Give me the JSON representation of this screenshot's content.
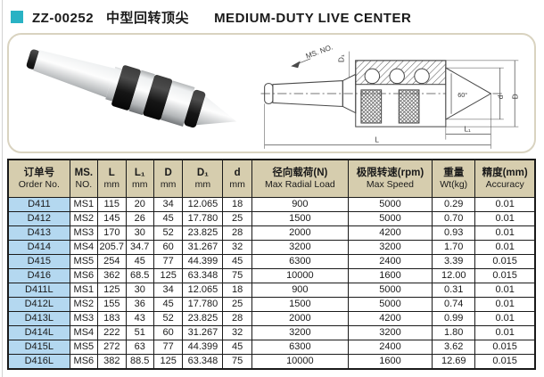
{
  "page": {
    "title": {
      "model": "ZZ-00252",
      "name_cn": "中型回转顶尖",
      "name_en": "MEDIUM-DUTY LIVE CENTER"
    }
  },
  "colors": {
    "accent_teal": "#29b2c4",
    "header_beige": "#d6cdae",
    "order_column_blue": "#b4d8f0",
    "figure_border": "#d9d3c0",
    "table_border": "#1a1a1a"
  },
  "drawing": {
    "labels": {
      "ms_no": "MS. NO.",
      "d1": "D₁",
      "angle": "60°",
      "d_small": "d",
      "d_big": "D",
      "l1": "L₁",
      "l": "L"
    }
  },
  "table": {
    "columns": [
      {
        "cn": "订单号",
        "en": "Order No."
      },
      {
        "cn": "MS.",
        "en": "NO."
      },
      {
        "cn": "L",
        "en": "mm"
      },
      {
        "cn": "L₁",
        "en": "mm"
      },
      {
        "cn": "D",
        "en": "mm"
      },
      {
        "cn": "D₁",
        "en": "mm"
      },
      {
        "cn": "d",
        "en": "mm"
      },
      {
        "cn": "径向载荷(N)",
        "en": "Max Radial Load"
      },
      {
        "cn": "极限转速(rpm)",
        "en": "Max Speed"
      },
      {
        "cn": "重量",
        "en": "Wt(kg)"
      },
      {
        "cn": "精度(mm)",
        "en": "Accuracy"
      }
    ],
    "rows": [
      [
        "D411",
        "MS1",
        "115",
        "20",
        "34",
        "12.065",
        "18",
        "900",
        "5000",
        "0.29",
        "0.01"
      ],
      [
        "D412",
        "MS2",
        "145",
        "26",
        "45",
        "17.780",
        "25",
        "1500",
        "5000",
        "0.70",
        "0.01"
      ],
      [
        "D413",
        "MS3",
        "170",
        "30",
        "52",
        "23.825",
        "28",
        "2000",
        "4200",
        "0.93",
        "0.01"
      ],
      [
        "D414",
        "MS4",
        "205.7",
        "34.7",
        "60",
        "31.267",
        "32",
        "3200",
        "3200",
        "1.70",
        "0.01"
      ],
      [
        "D415",
        "MS5",
        "254",
        "45",
        "77",
        "44.399",
        "45",
        "6300",
        "2400",
        "3.39",
        "0.015"
      ],
      [
        "D416",
        "MS6",
        "362",
        "68.5",
        "125",
        "63.348",
        "75",
        "10000",
        "1600",
        "12.00",
        "0.015"
      ],
      [
        "D411L",
        "MS1",
        "125",
        "30",
        "34",
        "12.065",
        "18",
        "900",
        "5000",
        "0.31",
        "0.01"
      ],
      [
        "D412L",
        "MS2",
        "155",
        "36",
        "45",
        "17.780",
        "25",
        "1500",
        "5000",
        "0.74",
        "0.01"
      ],
      [
        "D413L",
        "MS3",
        "183",
        "43",
        "52",
        "23.825",
        "28",
        "2000",
        "4200",
        "0.99",
        "0.01"
      ],
      [
        "D414L",
        "MS4",
        "222",
        "51",
        "60",
        "31.267",
        "32",
        "3200",
        "3200",
        "1.80",
        "0.01"
      ],
      [
        "D415L",
        "MS5",
        "272",
        "63",
        "77",
        "44.399",
        "45",
        "6300",
        "2400",
        "3.62",
        "0.015"
      ],
      [
        "D416L",
        "MS6",
        "382",
        "88.5",
        "125",
        "63.348",
        "75",
        "10000",
        "1600",
        "12.69",
        "0.015"
      ]
    ]
  }
}
